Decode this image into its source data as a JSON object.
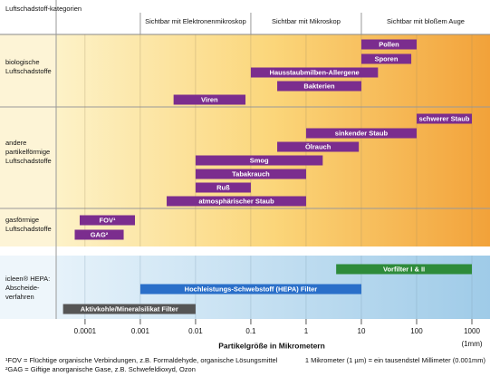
{
  "chart_data": {
    "type": "range",
    "header": "Luftschadstoff-kategorien",
    "zones": [
      {
        "label": "Sichtbar mit Elektronenmikroskop",
        "from": 0.001,
        "to": 0.1
      },
      {
        "label": "Sichtbar mit Mikroskop",
        "from": 0.1,
        "to": 10
      },
      {
        "label": "Sichtbar mit bloßem Auge",
        "from": 10,
        "to": 1000
      }
    ],
    "groups": [
      {
        "label": [
          "biologische",
          "Luftschadstoffe"
        ],
        "color": "#7b2d8e",
        "bars": [
          {
            "name": "Pollen",
            "from": 10,
            "to": 100
          },
          {
            "name": "Sporen",
            "from": 10,
            "to": 80
          },
          {
            "name": "Hausstaubmilben-Allergene",
            "from": 0.1,
            "to": 20
          },
          {
            "name": "Bakterien",
            "from": 0.3,
            "to": 10
          },
          {
            "name": "Viren",
            "from": 0.004,
            "to": 0.08
          }
        ]
      },
      {
        "label": [
          "andere",
          "partikelförmige",
          "Luftschadstoffe"
        ],
        "color": "#7b2d8e",
        "bars": [
          {
            "name": "schwerer Staub",
            "from": 100,
            "to": 1000
          },
          {
            "name": "sinkender Staub",
            "from": 1,
            "to": 100
          },
          {
            "name": "Ölrauch",
            "from": 0.3,
            "to": 9
          },
          {
            "name": "Smog",
            "from": 0.01,
            "to": 2
          },
          {
            "name": "Tabakrauch",
            "from": 0.01,
            "to": 1
          },
          {
            "name": "Ruß",
            "from": 0.01,
            "to": 0.1
          },
          {
            "name": "atmosphärischer Staub",
            "from": 0.003,
            "to": 1
          }
        ]
      },
      {
        "label": [
          "gasförmige",
          "Luftschadstoffe"
        ],
        "color": "#7b2d8e",
        "bars": [
          {
            "name": "FOV¹",
            "from": 8e-05,
            "to": 0.0008
          },
          {
            "name": "GAG²",
            "from": 6.5e-05,
            "to": 0.0005
          }
        ]
      },
      {
        "label": [
          "icleen® HEPA:",
          "Abscheide-",
          "verfahren"
        ],
        "color": null,
        "bars": [
          {
            "name": "Vorfilter I & II",
            "from": 3.5,
            "to": 1000,
            "color": "#2e8b3a"
          },
          {
            "name": "Hochleistungs-Schwebstoff (HEPA) Filter",
            "from": 0.001,
            "to": 10,
            "color": "#2a6fc9"
          },
          {
            "name": "Aktivkohle/Mineralsilikat Filter",
            "from": 4e-05,
            "to": 0.01,
            "color": "#555555"
          }
        ]
      }
    ],
    "xlim": [
      3e-05,
      1000
    ],
    "xticks": [
      0.0001,
      0.001,
      0.01,
      0.1,
      1,
      10,
      100,
      1000
    ],
    "log_x": true,
    "xlabel": "Partikelgröße in Mikrometern",
    "x_end_note": "(1mm)",
    "footnotes": [
      "¹FOV = Flüchtige organische Verbindungen, z.B. Formaldehyde, organische Lösungsmittel",
      "²GAG = Giftige anorganische Gase, z.B. Schwefeldioxyd, Ozon"
    ],
    "unit_note": "1 Mikrometer (1 µm) = ein tausendstel Millimeter (0.001mm)"
  }
}
